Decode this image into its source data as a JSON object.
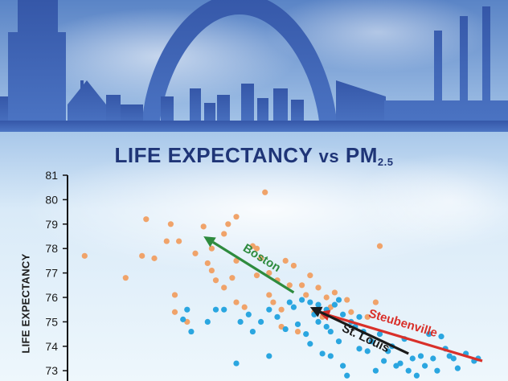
{
  "title": {
    "main": "LIFE EXPECTANCY",
    "vs": "vs",
    "pm": "PM",
    "pm_sub": "2.5"
  },
  "colors": {
    "sky_top": "#5d86c8",
    "sky_bottom": "#e9f4fb",
    "skyline": "#3a5fb2",
    "title": "#1f3577",
    "orange_points": "#f0a36a",
    "blue_points": "#2aa6e0",
    "boston_arrow": "#2e8b3e",
    "steubenville_arrow": "#d9302a",
    "stlouis_arrow": "#1a1a1a"
  },
  "chart_data": {
    "type": "scatter",
    "title": "LIFE EXPECTANCY vs PM2.5",
    "ylabel": "LIFE EXPECTANCY",
    "xlabel": "",
    "ylim": [
      72.7,
      81
    ],
    "xlim": [
      0,
      100
    ],
    "y_ticks": [
      "73",
      "74",
      "75",
      "76",
      "77",
      "78",
      "79",
      "80",
      "81"
    ],
    "series": [
      {
        "color": "orange",
        "points": [
          [
            3,
            77.7
          ],
          [
            13,
            76.8
          ],
          [
            17,
            77.7
          ],
          [
            18,
            79.2
          ],
          [
            20,
            77.6
          ],
          [
            24,
            79.0
          ],
          [
            23,
            78.3
          ],
          [
            26,
            78.3
          ],
          [
            25,
            76.1
          ],
          [
            30,
            77.8
          ],
          [
            32,
            78.9
          ],
          [
            33,
            77.4
          ],
          [
            34,
            78.0
          ],
          [
            34,
            77.1
          ],
          [
            35,
            76.7
          ],
          [
            37,
            78.6
          ],
          [
            38,
            79.0
          ],
          [
            37,
            76.4
          ],
          [
            39,
            76.8
          ],
          [
            40,
            79.3
          ],
          [
            40,
            75.8
          ],
          [
            42,
            75.6
          ],
          [
            44,
            78.1
          ],
          [
            45,
            76.9
          ],
          [
            46,
            77.6
          ],
          [
            47,
            80.3
          ],
          [
            48,
            77.0
          ],
          [
            48,
            76.1
          ],
          [
            49,
            75.8
          ],
          [
            50,
            76.7
          ],
          [
            51,
            75.5
          ],
          [
            52,
            77.5
          ],
          [
            53,
            76.5
          ],
          [
            54,
            77.3
          ],
          [
            56,
            76.5
          ],
          [
            57,
            76.1
          ],
          [
            58,
            76.9
          ],
          [
            59,
            75.4
          ],
          [
            60,
            76.4
          ],
          [
            61,
            75.2
          ],
          [
            62,
            76.0
          ],
          [
            63,
            75.6
          ],
          [
            64,
            76.2
          ],
          [
            67,
            75.9
          ],
          [
            68,
            75.4
          ],
          [
            74,
            75.8
          ],
          [
            75,
            78.1
          ],
          [
            51,
            74.8
          ],
          [
            55,
            74.6
          ],
          [
            72,
            75.2
          ],
          [
            25,
            75.4
          ],
          [
            28,
            75.0
          ],
          [
            45,
            78.0
          ],
          [
            40,
            77.5
          ]
        ]
      },
      {
        "color": "blue",
        "points": [
          [
            27,
            75.1
          ],
          [
            28,
            75.5
          ],
          [
            29,
            74.6
          ],
          [
            33,
            75.0
          ],
          [
            35,
            75.5
          ],
          [
            37,
            75.5
          ],
          [
            40,
            73.3
          ],
          [
            41,
            75.0
          ],
          [
            43,
            75.3
          ],
          [
            44,
            74.6
          ],
          [
            46,
            75.0
          ],
          [
            48,
            75.5
          ],
          [
            48,
            73.6
          ],
          [
            50,
            75.2
          ],
          [
            52,
            74.7
          ],
          [
            54,
            75.6
          ],
          [
            55,
            74.9
          ],
          [
            57,
            74.5
          ],
          [
            58,
            74.1
          ],
          [
            59,
            75.3
          ],
          [
            60,
            75.0
          ],
          [
            61,
            73.7
          ],
          [
            62,
            74.8
          ],
          [
            63,
            74.6
          ],
          [
            63,
            73.6
          ],
          [
            64,
            75.7
          ],
          [
            65,
            74.2
          ],
          [
            66,
            73.2
          ],
          [
            67,
            72.8
          ],
          [
            68,
            75.0
          ],
          [
            69,
            74.8
          ],
          [
            70,
            73.9
          ],
          [
            71,
            74.6
          ],
          [
            72,
            73.8
          ],
          [
            73,
            74.2
          ],
          [
            74,
            73.0
          ],
          [
            75,
            74.5
          ],
          [
            76,
            73.4
          ],
          [
            77,
            73.8
          ],
          [
            78,
            74.0
          ],
          [
            79,
            73.2
          ],
          [
            80,
            73.3
          ],
          [
            81,
            74.3
          ],
          [
            82,
            73.0
          ],
          [
            83,
            73.5
          ],
          [
            84,
            72.8
          ],
          [
            85,
            73.6
          ],
          [
            86,
            73.2
          ],
          [
            87,
            74.5
          ],
          [
            88,
            73.5
          ],
          [
            89,
            73.0
          ],
          [
            90,
            74.4
          ],
          [
            91,
            73.9
          ],
          [
            92,
            73.6
          ],
          [
            93,
            73.5
          ],
          [
            94,
            73.1
          ],
          [
            96,
            73.7
          ],
          [
            98,
            73.4
          ],
          [
            99,
            73.5
          ],
          [
            56,
            75.9
          ],
          [
            58,
            75.8
          ],
          [
            60,
            75.7
          ],
          [
            53,
            75.8
          ],
          [
            65,
            75.9
          ],
          [
            66,
            75.3
          ],
          [
            70,
            75.2
          ],
          [
            62,
            75.5
          ]
        ]
      }
    ],
    "annotations": [
      {
        "label": "Boston",
        "from": [
          54,
          76.2
        ],
        "to": [
          32,
          78.5
        ],
        "color": "green"
      },
      {
        "label": "Steubenville",
        "from": [
          100,
          73.4
        ],
        "to": [
          60,
          75.4
        ],
        "color": "red"
      },
      {
        "label": "St. Louis",
        "from": [
          82,
          73.7
        ],
        "to": [
          58,
          75.6
        ],
        "color": "black"
      }
    ]
  }
}
